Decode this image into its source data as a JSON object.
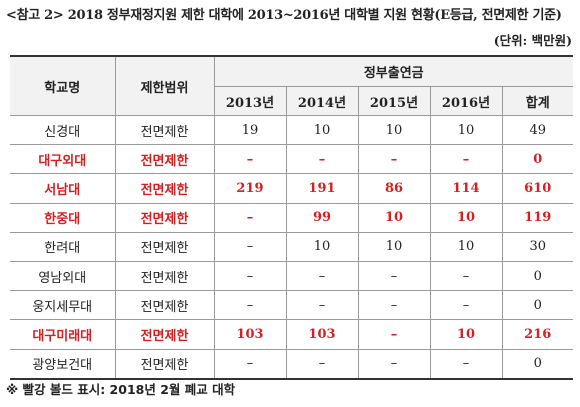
{
  "title": "<참고 2> 2018 정부재정지원 제한 대학에 2013~2016년 대학별 지원 현황(E등급, 전면제한 기준)",
  "unit": "(단위: 백만원)",
  "table": {
    "headers": {
      "school": "학교명",
      "scope": "제한범위",
      "funding": "정부출연금",
      "years": [
        "2013년",
        "2014년",
        "2015년",
        "2016년",
        "합계"
      ]
    },
    "rows": [
      {
        "school": "신경대",
        "scope": "전면제한",
        "values": [
          "19",
          "10",
          "10",
          "10",
          "49"
        ],
        "highlight": false
      },
      {
        "school": "대구외대",
        "scope": "전면제한",
        "values": [
          "–",
          "–",
          "–",
          "–",
          "0"
        ],
        "highlight": true
      },
      {
        "school": "서남대",
        "scope": "전면제한",
        "values": [
          "219",
          "191",
          "86",
          "114",
          "610"
        ],
        "highlight": true
      },
      {
        "school": "한중대",
        "scope": "전면제한",
        "values": [
          "–",
          "99",
          "10",
          "10",
          "119"
        ],
        "highlight": true
      },
      {
        "school": "한려대",
        "scope": "전면제한",
        "values": [
          "–",
          "10",
          "10",
          "10",
          "30"
        ],
        "highlight": false
      },
      {
        "school": "영남외대",
        "scope": "전면제한",
        "values": [
          "–",
          "–",
          "–",
          "–",
          "0"
        ],
        "highlight": false
      },
      {
        "school": "웅지세무대",
        "scope": "전면제한",
        "values": [
          "–",
          "–",
          "–",
          "–",
          "0"
        ],
        "highlight": false
      },
      {
        "school": "대구미래대",
        "scope": "전면제한",
        "values": [
          "103",
          "103",
          "–",
          "10",
          "216"
        ],
        "highlight": true
      },
      {
        "school": "광양보건대",
        "scope": "전면제한",
        "values": [
          "–",
          "–",
          "–",
          "–",
          "0"
        ],
        "highlight": false
      }
    ]
  },
  "note": "※ 빨강 볼드 표시: 2018년 2월 폐교 대학",
  "colors": {
    "highlight": "#d81e1e",
    "header_bg": "#f2f2f2"
  }
}
